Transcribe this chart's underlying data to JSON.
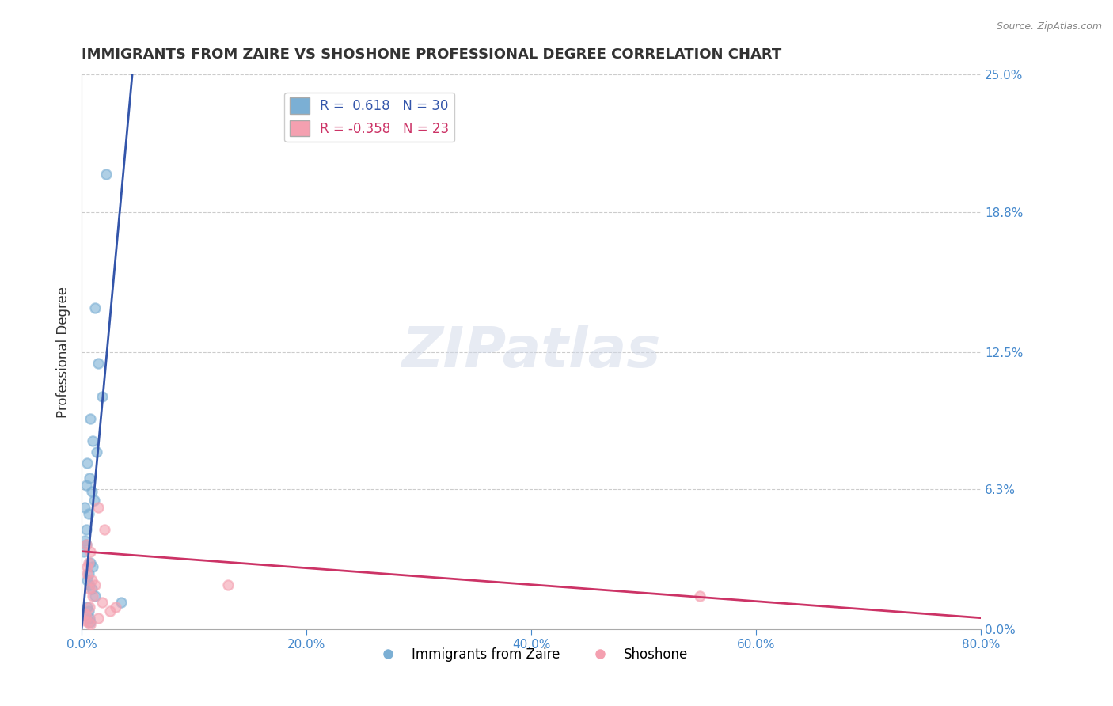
{
  "title": "IMMIGRANTS FROM ZAIRE VS SHOSHONE PROFESSIONAL DEGREE CORRELATION CHART",
  "source_text": "Source: ZipAtlas.com",
  "ylabel_text": "Professional Degree",
  "x_tick_labels": [
    "0.0%",
    "20.0%",
    "40.0%",
    "60.0%",
    "80.0%"
  ],
  "x_tick_values": [
    0.0,
    20.0,
    40.0,
    60.0,
    80.0
  ],
  "y_tick_labels": [
    "0.0%",
    "6.3%",
    "12.5%",
    "18.8%",
    "25.0%"
  ],
  "y_tick_values": [
    0.0,
    6.3,
    12.5,
    18.8,
    25.0
  ],
  "xlim": [
    0.0,
    80.0
  ],
  "ylim": [
    0.0,
    25.0
  ],
  "blue_R": 0.618,
  "blue_N": 30,
  "pink_R": -0.358,
  "pink_N": 23,
  "blue_color": "#7bafd4",
  "blue_line_color": "#3355aa",
  "pink_color": "#f4a0b0",
  "pink_line_color": "#cc3366",
  "legend_label_blue": "Immigrants from Zaire",
  "legend_label_pink": "Shoshone",
  "blue_scatter_x": [
    1.2,
    1.5,
    1.8,
    0.8,
    1.0,
    1.3,
    2.2,
    0.5,
    0.7,
    0.9,
    1.1,
    0.6,
    0.4,
    0.3,
    0.2,
    0.8,
    1.0,
    0.6,
    0.5,
    0.7,
    0.9,
    1.2,
    3.5,
    0.4,
    0.3,
    0.5,
    0.6,
    0.7,
    0.8,
    0.4
  ],
  "blue_scatter_y": [
    14.5,
    12.0,
    10.5,
    9.5,
    8.5,
    8.0,
    20.5,
    7.5,
    6.8,
    6.2,
    5.8,
    5.2,
    4.5,
    4.0,
    3.5,
    3.0,
    2.8,
    2.5,
    2.2,
    2.0,
    1.8,
    1.5,
    1.2,
    6.5,
    5.5,
    1.0,
    0.8,
    0.5,
    0.3,
    3.8
  ],
  "pink_scatter_x": [
    1.5,
    2.0,
    0.8,
    0.6,
    0.5,
    0.9,
    1.2,
    0.7,
    1.0,
    1.8,
    3.0,
    2.5,
    0.4,
    0.3,
    0.6,
    0.8,
    1.5,
    55.0,
    0.4,
    0.5,
    0.7,
    13.0,
    0.3
  ],
  "pink_scatter_y": [
    5.5,
    4.5,
    3.5,
    3.0,
    2.5,
    2.2,
    2.0,
    1.8,
    1.5,
    1.2,
    1.0,
    0.8,
    0.6,
    0.4,
    0.3,
    0.2,
    0.5,
    1.5,
    3.8,
    2.8,
    1.0,
    2.0,
    0.7
  ],
  "watermark_text": "ZIPatlas",
  "background_color": "#ffffff",
  "grid_color": "#cccccc",
  "tick_color": "#4488cc",
  "title_fontsize": 13,
  "axis_label_fontsize": 12,
  "tick_fontsize": 11,
  "legend_fontsize": 12,
  "marker_size": 80,
  "blue_trendline_x": [
    0.0,
    4.5
  ],
  "blue_trendline_y": [
    0.0,
    25.0
  ],
  "pink_trendline_x": [
    0.0,
    80.0
  ],
  "pink_trendline_y": [
    3.5,
    0.5
  ]
}
